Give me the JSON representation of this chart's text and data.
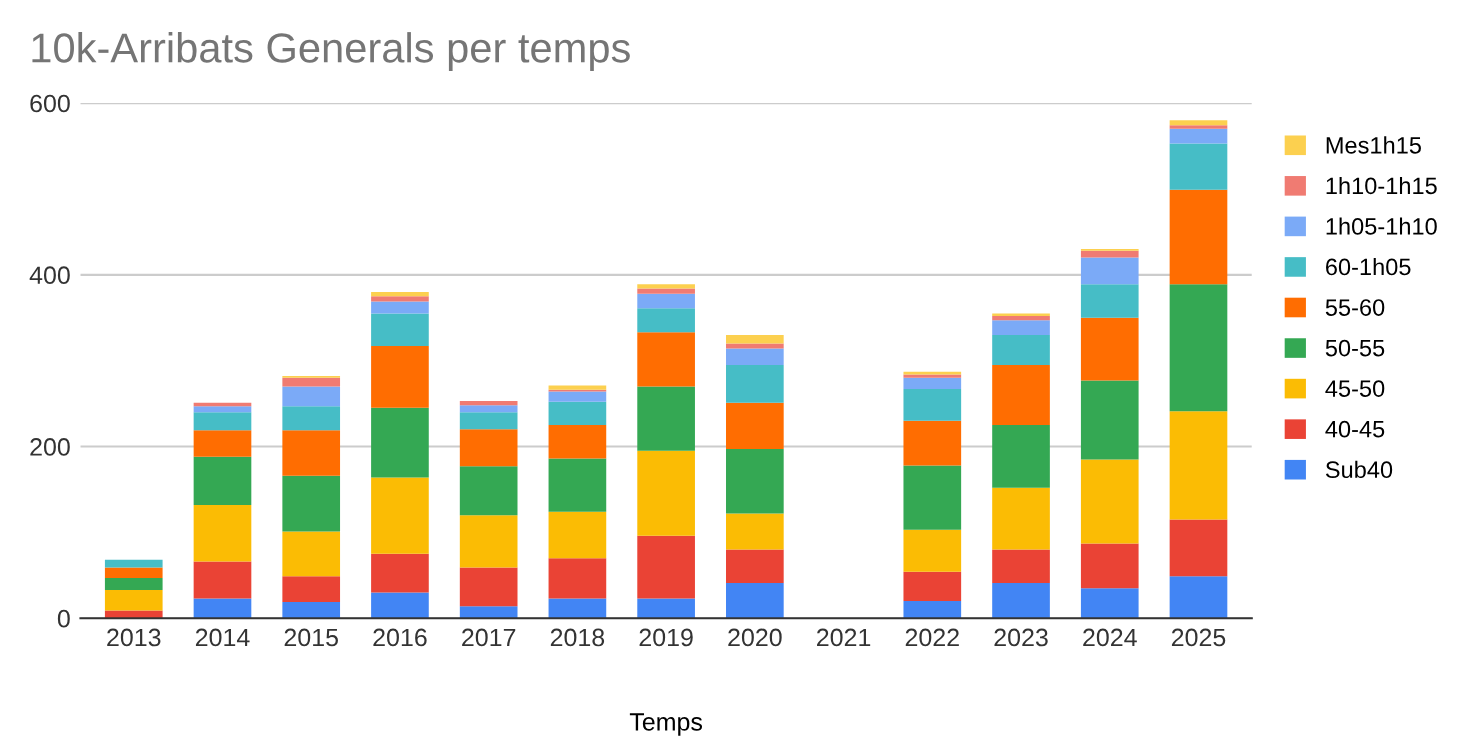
{
  "chart_data": {
    "type": "bar",
    "title": "10k-Arribats Generals per temps",
    "xlabel": "Temps",
    "categories": [
      "2013",
      "2014",
      "2015",
      "2016",
      "2017",
      "2018",
      "2019",
      "2020",
      "2021",
      "2022",
      "2023",
      "2024",
      "2025"
    ],
    "stacked": true,
    "ylim": [
      0,
      600
    ],
    "yticks": [
      0,
      200,
      400,
      600
    ],
    "grid": "y",
    "legend": "right",
    "series": [
      {
        "name": "Sub40",
        "color": "#4285f4",
        "values": [
          null,
          23,
          19,
          30,
          14,
          23,
          23,
          41,
          null,
          20,
          41,
          35,
          49
        ]
      },
      {
        "name": "40-45",
        "color": "#ea4335",
        "values": [
          9,
          43,
          30,
          45,
          45,
          47,
          73,
          39,
          null,
          34,
          39,
          52,
          66
        ]
      },
      {
        "name": "45-50",
        "color": "#fbbc04",
        "values": [
          24,
          66,
          52,
          89,
          61,
          54,
          99,
          42,
          null,
          49,
          72,
          98,
          126
        ]
      },
      {
        "name": "50-55",
        "color": "#34a853",
        "values": [
          14,
          56,
          65,
          81,
          57,
          62,
          75,
          75,
          null,
          75,
          73,
          92,
          148
        ]
      },
      {
        "name": "55-60",
        "color": "#ff6d01",
        "values": [
          12,
          31,
          53,
          72,
          43,
          39,
          63,
          54,
          null,
          52,
          70,
          73,
          110
        ]
      },
      {
        "name": "60-1h05",
        "color": "#46bdc6",
        "values": [
          9,
          21,
          28,
          38,
          20,
          27,
          28,
          44,
          null,
          37,
          35,
          39,
          54
        ]
      },
      {
        "name": "1h05-1h10",
        "color": "#7baaf7",
        "values": [
          0,
          7,
          23,
          14,
          8,
          12,
          17,
          19,
          null,
          13,
          17,
          31,
          17
        ]
      },
      {
        "name": "1h10-1h15",
        "color": "#f07b72",
        "values": [
          0,
          4,
          10,
          6,
          5,
          2,
          6,
          6,
          null,
          4,
          5,
          8,
          4
        ]
      },
      {
        "name": "Mes1h15",
        "color": "#fcd04f",
        "values": [
          0,
          0,
          2,
          5,
          0,
          5,
          5,
          10,
          null,
          3,
          3,
          2,
          6
        ]
      }
    ]
  }
}
